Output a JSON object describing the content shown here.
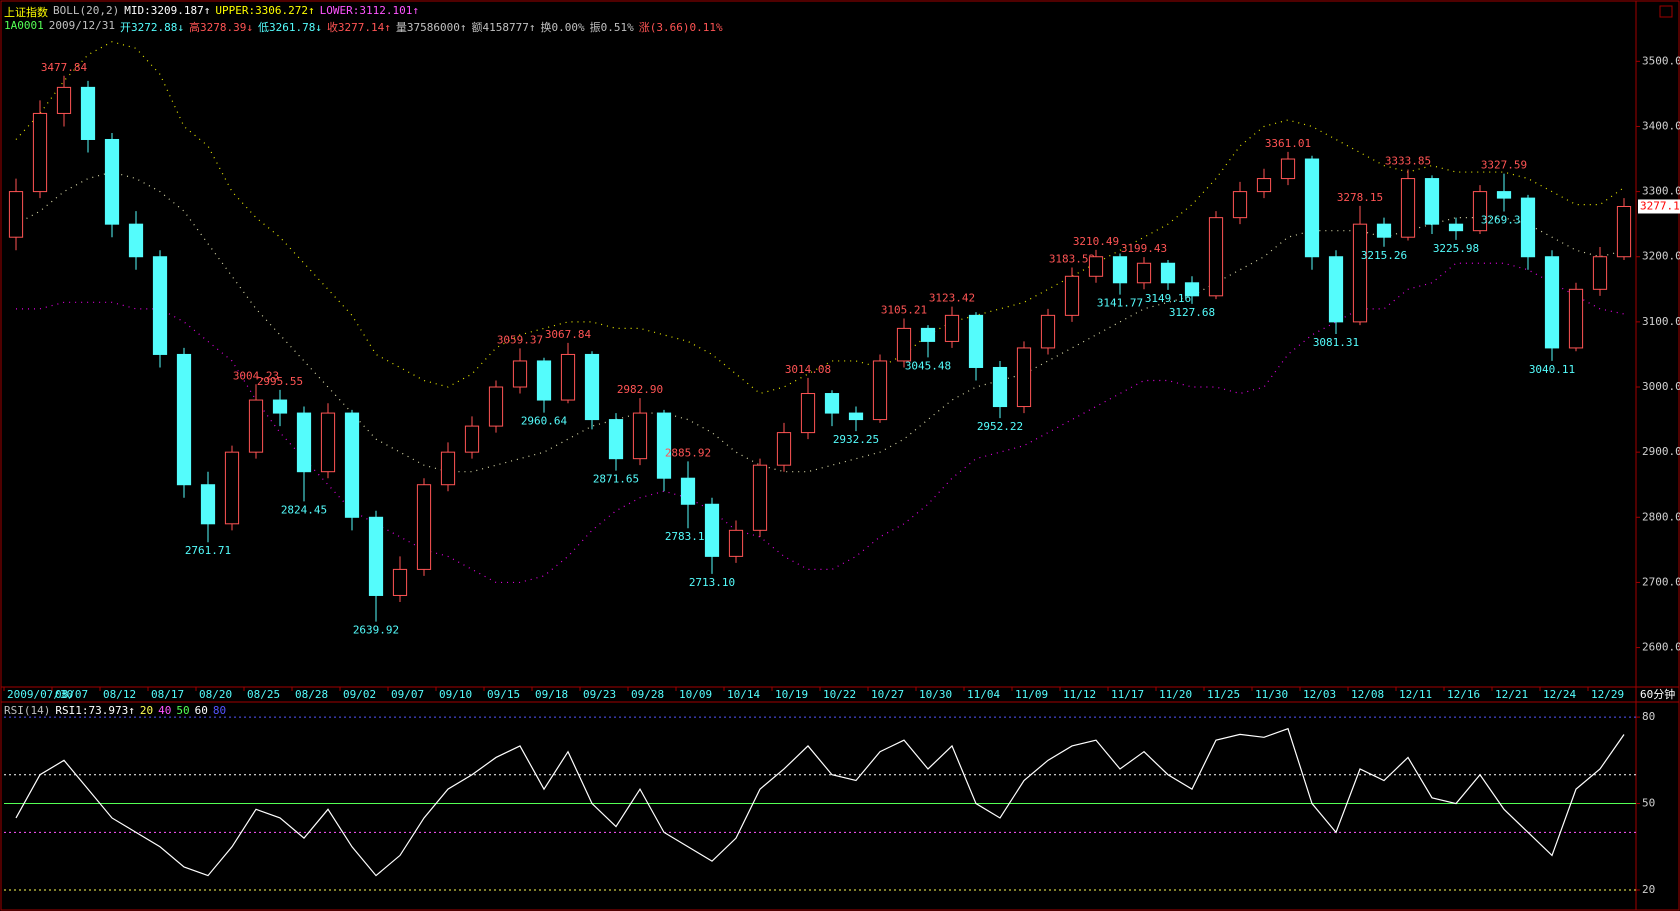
{
  "header": {
    "symbol_name": "上证指数",
    "boll_params": "BOLL(20,2)",
    "boll_mid": "MID:3209.187↑",
    "boll_upper": "UPPER:3306.272↑",
    "boll_lower": "LOWER:3112.101↑",
    "code": "1A0001",
    "date": "2009/12/31",
    "open": "开3272.88↓",
    "high": "高3278.39↓",
    "low": "低3261.78↓",
    "close": "收3277.14↑",
    "volume": "量37586000↑",
    "amount": "额4158777↑",
    "turnover": "换0.00%",
    "amplitude": "振0.51%",
    "change": "涨(3.66)0.11%"
  },
  "period": "60分钟",
  "chart_data": [
    {
      "type": "candlestick",
      "categories": [
        "2009/07/30",
        null,
        "08/07",
        null,
        "08/12",
        null,
        "08/17",
        null,
        "08/20",
        null,
        "08/25",
        null,
        "08/28",
        null,
        "09/02",
        null,
        "09/07",
        null,
        "09/10",
        null,
        "09/15",
        null,
        "09/18",
        null,
        "09/23",
        null,
        "09/28",
        null,
        "10/09",
        null,
        "10/14",
        null,
        "10/19",
        null,
        "10/22",
        null,
        "10/27",
        null,
        "10/30",
        null,
        "11/04",
        null,
        "11/09",
        null,
        "11/12",
        null,
        "11/17",
        null,
        "11/20",
        null,
        "11/25",
        null,
        "11/30",
        null,
        "12/03",
        null,
        "12/08",
        null,
        "12/11",
        null,
        "12/16",
        null,
        "12/21",
        null,
        "12/24",
        null,
        "12/29",
        null
      ],
      "open": [
        3230,
        3300,
        3420,
        3460,
        3380,
        3250,
        3200,
        3050,
        2850,
        2790,
        2900,
        2980,
        2960,
        2870,
        2960,
        2800,
        2680,
        2720,
        2850,
        2900,
        2940,
        3000,
        3040,
        2980,
        3050,
        2950,
        2890,
        2960,
        2860,
        2820,
        2740,
        2780,
        2880,
        2930,
        2990,
        2960,
        2950,
        3040,
        3090,
        3070,
        3110,
        3030,
        2970,
        3060,
        3110,
        3170,
        3200,
        3160,
        3190,
        3160,
        3140,
        3260,
        3300,
        3320,
        3350,
        3200,
        3100,
        3250,
        3230,
        3320,
        3250,
        3240,
        3300,
        3290,
        3200,
        3060,
        3150,
        3200
      ],
      "high": [
        3320,
        3440,
        3477.84,
        3470,
        3390,
        3270,
        3210,
        3060,
        2870,
        2910,
        3004.23,
        2995.55,
        2970,
        2975,
        2965,
        2810,
        2740,
        2860,
        2915,
        2955,
        3010,
        3059.37,
        3045,
        3067.84,
        3055,
        2960,
        2982.9,
        2965,
        2885.92,
        2830,
        2795,
        2890,
        2945,
        3014.08,
        2995,
        2970,
        3050,
        3105.21,
        3095,
        3123.42,
        3115,
        3040,
        3070,
        3120,
        3183.52,
        3210.49,
        3205,
        3199.43,
        3195,
        3170,
        3270,
        3315,
        3335,
        3361.01,
        3355,
        3210,
        3278.15,
        3260,
        3333.85,
        3325,
        3260,
        3310,
        3327.59,
        3295,
        3210,
        3160,
        3215,
        3290
      ],
      "low": [
        3210,
        3290,
        3400,
        3360,
        3230,
        3180,
        3030,
        2830,
        2761.71,
        2780,
        2890,
        2940,
        2824.45,
        2860,
        2780,
        2639.92,
        2670,
        2710,
        2840,
        2890,
        2930,
        2990,
        2960.64,
        2975,
        2935,
        2871.65,
        2880,
        2840,
        2783.18,
        2713.1,
        2730,
        2770,
        2870,
        2920,
        2940,
        2932.25,
        2945,
        3030,
        3045.48,
        3060,
        3010,
        2952.22,
        2960,
        3050,
        3100,
        3160,
        3141.77,
        3150,
        3149.16,
        3127.68,
        3135,
        3250,
        3290,
        3310,
        3180,
        3081.31,
        3095,
        3215.26,
        3225,
        3235,
        3225.98,
        3235,
        3269.37,
        3180,
        3040.11,
        3055,
        3140,
        3195
      ],
      "close": [
        3300,
        3420,
        3460,
        3380,
        3250,
        3200,
        3050,
        2850,
        2790,
        2900,
        2980,
        2960,
        2870,
        2960,
        2800,
        2680,
        2720,
        2850,
        2900,
        2940,
        3000,
        3040,
        2980,
        3050,
        2950,
        2890,
        2960,
        2860,
        2820,
        2740,
        2780,
        2880,
        2930,
        2990,
        2960,
        2950,
        3040,
        3090,
        3070,
        3110,
        3030,
        2970,
        3060,
        3110,
        3170,
        3200,
        3160,
        3190,
        3160,
        3140,
        3260,
        3300,
        3320,
        3350,
        3200,
        3100,
        3250,
        3230,
        3320,
        3250,
        3240,
        3300,
        3290,
        3200,
        3060,
        3150,
        3200,
        3277.14
      ],
      "high_labels": [
        null,
        null,
        "3477.84",
        null,
        null,
        null,
        null,
        null,
        null,
        null,
        "3004.23",
        "2995.55",
        null,
        null,
        null,
        null,
        null,
        null,
        null,
        null,
        null,
        "3059.37",
        null,
        "3067.84",
        null,
        null,
        "2982.90",
        null,
        "2885.92",
        null,
        null,
        null,
        null,
        "3014.08",
        null,
        null,
        null,
        "3105.21",
        null,
        "3123.42",
        null,
        null,
        null,
        null,
        "3183.52",
        "3210.49",
        null,
        "3199.43",
        null,
        null,
        null,
        null,
        null,
        "3361.01",
        null,
        null,
        "3278.15",
        null,
        "3333.85",
        null,
        null,
        null,
        "3327.59",
        null,
        null,
        null,
        null,
        null
      ],
      "low_labels": [
        null,
        null,
        null,
        null,
        null,
        null,
        null,
        null,
        "2761.71",
        null,
        null,
        null,
        "2824.45",
        null,
        null,
        "2639.92",
        null,
        null,
        null,
        null,
        null,
        null,
        "2960.64",
        null,
        null,
        "2871.65",
        null,
        null,
        "2783.18",
        "2713.10",
        null,
        null,
        null,
        null,
        null,
        "2932.25",
        null,
        null,
        "3045.48",
        null,
        null,
        "2952.22",
        null,
        null,
        null,
        null,
        "3141.77",
        null,
        "3149.16",
        "3127.68",
        null,
        null,
        null,
        null,
        null,
        "3081.31",
        null,
        "3215.26",
        null,
        null,
        "3225.98",
        null,
        "3269.37",
        null,
        "3040.11",
        null,
        null,
        null
      ],
      "up_color": "#ff5454",
      "down_color": "#54fcfc",
      "bands": [
        {
          "color": "#d8d8a8",
          "values": [
            3250,
            3270,
            3300,
            3320,
            3330,
            3320,
            3300,
            3270,
            3220,
            3170,
            3120,
            3080,
            3040,
            3000,
            2960,
            2920,
            2900,
            2880,
            2870,
            2870,
            2880,
            2890,
            2900,
            2920,
            2940,
            2950,
            2960,
            2960,
            2950,
            2930,
            2900,
            2880,
            2870,
            2870,
            2880,
            2890,
            2900,
            2920,
            2950,
            2980,
            3000,
            3010,
            3020,
            3040,
            3060,
            3080,
            3100,
            3120,
            3130,
            3140,
            3160,
            3180,
            3200,
            3230,
            3240,
            3240,
            3240,
            3230,
            3240,
            3250,
            3260,
            3260,
            3260,
            3250,
            3230,
            3210,
            3200,
            3209.187
          ]
        },
        {
          "color": "#e8e800",
          "values": [
            3380,
            3420,
            3470,
            3510,
            3530,
            3520,
            3480,
            3400,
            3370,
            3300,
            3260,
            3230,
            3190,
            3150,
            3110,
            3050,
            3030,
            3010,
            3000,
            3020,
            3060,
            3080,
            3090,
            3100,
            3100,
            3090,
            3090,
            3080,
            3070,
            3050,
            3020,
            2990,
            3000,
            3020,
            3040,
            3040,
            3030,
            3050,
            3080,
            3100,
            3110,
            3120,
            3130,
            3150,
            3170,
            3190,
            3210,
            3230,
            3250,
            3280,
            3320,
            3370,
            3400,
            3410,
            3400,
            3380,
            3360,
            3340,
            3330,
            3340,
            3330,
            3330,
            3330,
            3320,
            3300,
            3280,
            3280,
            3306.272
          ]
        },
        {
          "color": "#e000e0",
          "values": [
            3120,
            3120,
            3130,
            3130,
            3130,
            3120,
            3120,
            3100,
            3070,
            3040,
            2980,
            2930,
            2890,
            2850,
            2810,
            2790,
            2770,
            2750,
            2740,
            2720,
            2700,
            2700,
            2710,
            2740,
            2780,
            2810,
            2830,
            2840,
            2830,
            2810,
            2780,
            2770,
            2740,
            2720,
            2720,
            2740,
            2770,
            2790,
            2820,
            2860,
            2890,
            2900,
            2910,
            2930,
            2950,
            2970,
            2990,
            3010,
            3010,
            3000,
            3000,
            2990,
            3000,
            3050,
            3080,
            3100,
            3120,
            3120,
            3150,
            3160,
            3190,
            3190,
            3190,
            3180,
            3160,
            3140,
            3120,
            3112.101
          ]
        }
      ],
      "ylim": [
        2541,
        3588
      ],
      "yticks": [
        {
          "value": 2600,
          "label": "2600.0"
        },
        {
          "value": 2700,
          "label": "2700.0"
        },
        {
          "value": 2800,
          "label": "2800.0"
        },
        {
          "value": 2900,
          "label": "2900.0"
        },
        {
          "value": 3000,
          "label": "3000.0"
        },
        {
          "value": 3100,
          "label": "3100.0"
        },
        {
          "value": 3200,
          "label": "3200.0"
        },
        {
          "value": 3300,
          "label": "3300.0"
        },
        {
          "value": 3400,
          "label": "3400.0"
        },
        {
          "value": 3500,
          "label": "3500.0"
        }
      ],
      "last_price_label": "3277.1"
    },
    {
      "type": "line",
      "title": "RSI(14)",
      "legend": "RSI1:73.973↑",
      "series": [
        {
          "color": "#ffffff",
          "values": [
            45,
            60,
            65,
            55,
            45,
            40,
            35,
            28,
            25,
            35,
            48,
            45,
            38,
            48,
            35,
            25,
            32,
            45,
            55,
            60,
            66,
            70,
            55,
            68,
            50,
            42,
            55,
            40,
            35,
            30,
            38,
            55,
            62,
            70,
            60,
            58,
            68,
            72,
            62,
            70,
            50,
            45,
            58,
            65,
            70,
            72,
            62,
            68,
            60,
            55,
            72,
            74,
            73,
            76,
            50,
            40,
            62,
            58,
            66,
            52,
            50,
            60,
            48,
            40,
            32,
            55,
            62,
            73.973
          ]
        }
      ],
      "levels": [
        {
          "value": 20,
          "color": "#ffff54"
        },
        {
          "value": 40,
          "color": "#ff54ff"
        },
        {
          "value": 50,
          "color": "#54ff54"
        },
        {
          "value": 60,
          "color": "#ffffff"
        },
        {
          "value": 80,
          "color": "#5454ff"
        }
      ],
      "ylim": [
        13.4,
        84.9
      ],
      "yticks": [
        20,
        50,
        80
      ]
    }
  ]
}
